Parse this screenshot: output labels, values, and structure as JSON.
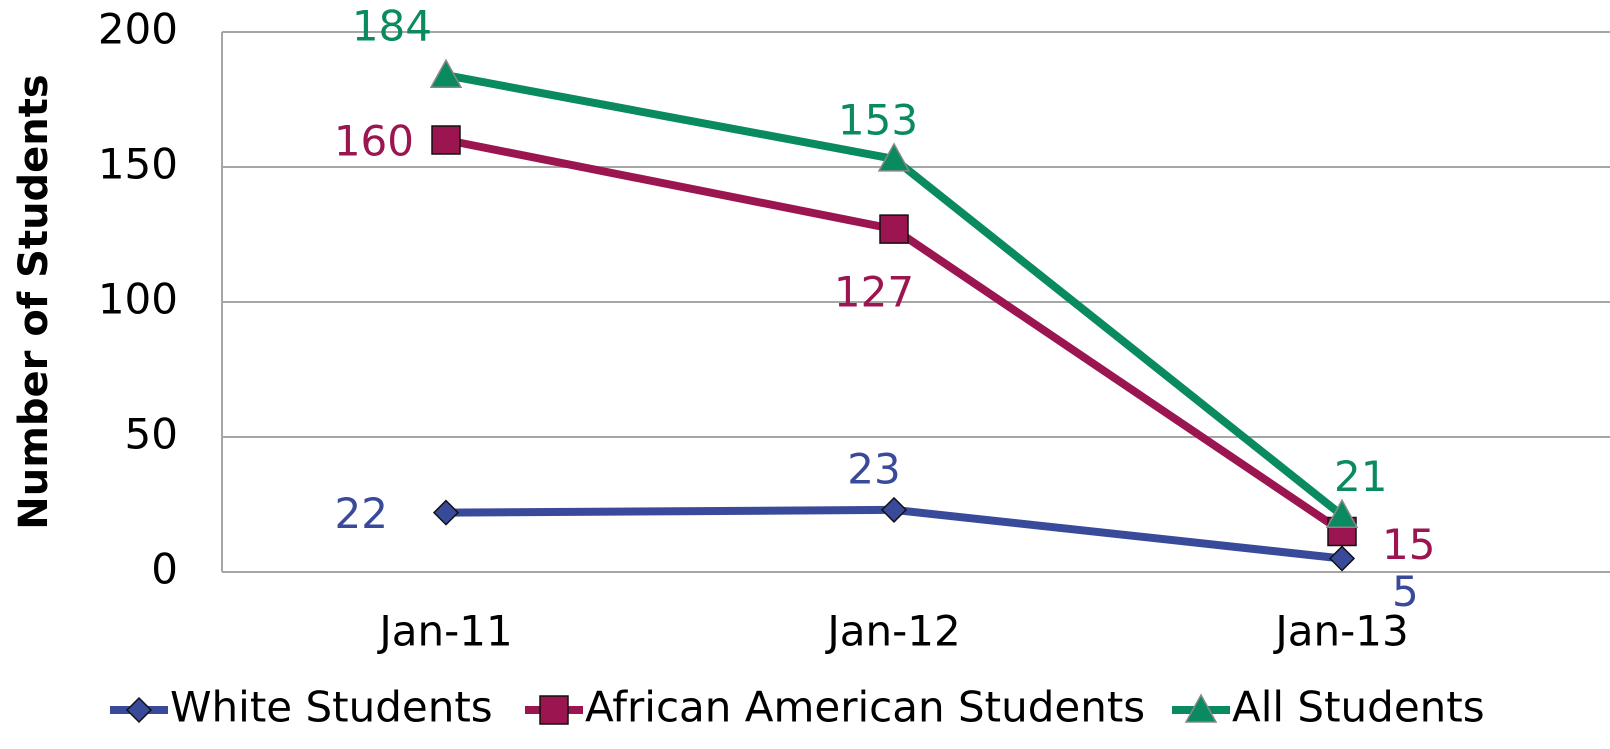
{
  "chart_data": {
    "type": "line",
    "y_label": "Number of Students",
    "categories": [
      "Jan-11",
      "Jan-12",
      "Jan-13"
    ],
    "series": [
      {
        "name": "White Students",
        "color": "#3a4a9a",
        "marker": "diamond",
        "values": [
          22,
          23,
          5
        ]
      },
      {
        "name": "African American Students",
        "color": "#9b1550",
        "marker": "square",
        "values": [
          160,
          127,
          15
        ]
      },
      {
        "name": "All Students",
        "color": "#0a8a60",
        "marker": "triangle",
        "values": [
          184,
          153,
          21
        ]
      }
    ],
    "ylim": [
      0,
      200
    ],
    "yticks": [
      0,
      50,
      100,
      150,
      200
    ],
    "grid": true,
    "legend": "bottom"
  }
}
